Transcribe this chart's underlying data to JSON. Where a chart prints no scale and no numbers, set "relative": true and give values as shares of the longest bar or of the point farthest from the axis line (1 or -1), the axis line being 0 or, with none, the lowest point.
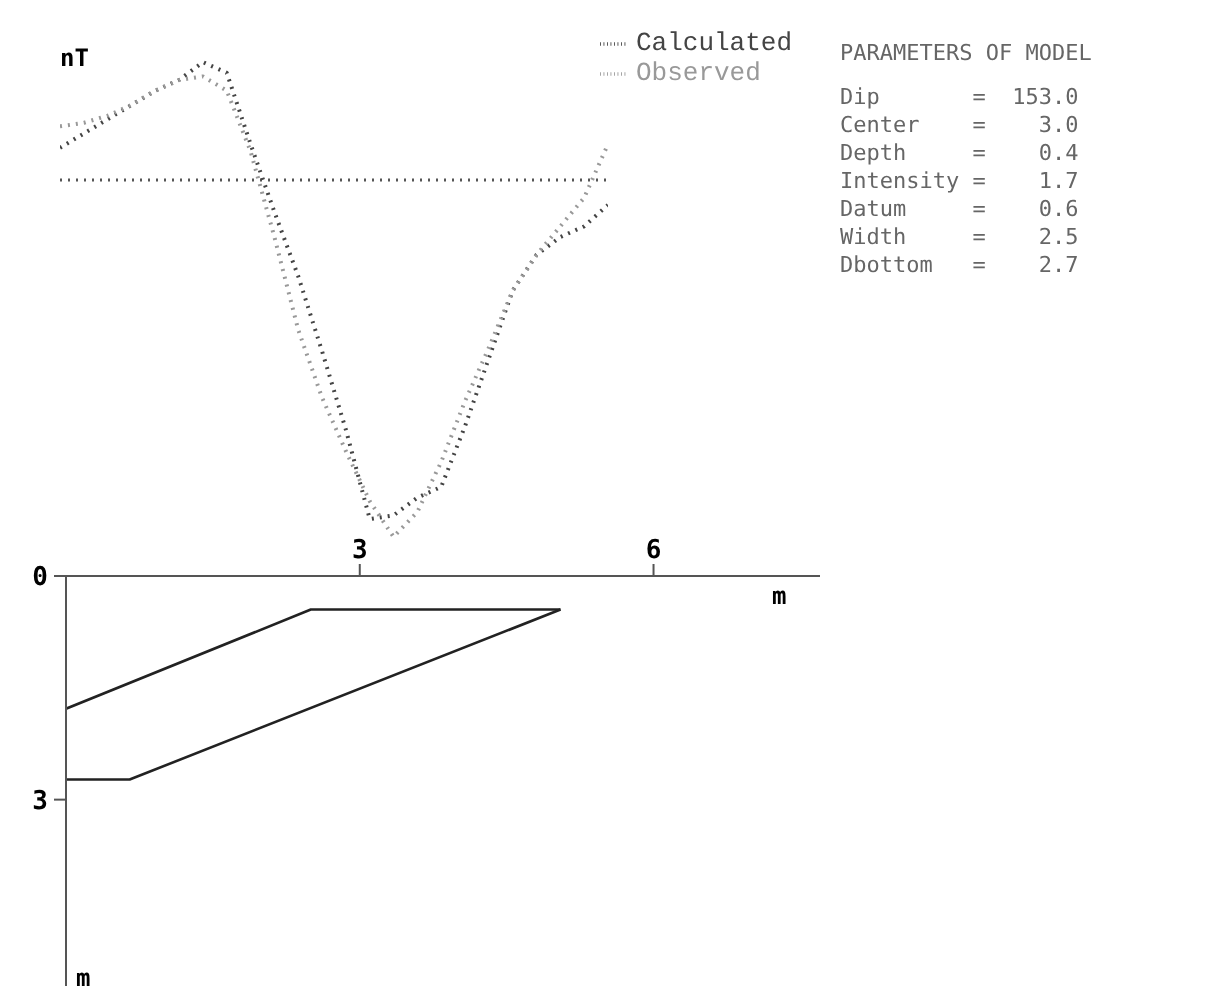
{
  "chart_data": [
    {
      "type": "line",
      "relative": true,
      "ylabel": "nT",
      "legend": "top right",
      "line_style": "dotted",
      "ref_lines": [
        {
          "axis": "y",
          "value": 0,
          "line_style": "dotted",
          "color": "#555555"
        }
      ],
      "categories": [
        null,
        null,
        null,
        null,
        null,
        null,
        null,
        null,
        null,
        null,
        null,
        null,
        null,
        null,
        null,
        null,
        null,
        null,
        null,
        null,
        null,
        null,
        null,
        null
      ],
      "series": [
        {
          "name": "Calculated",
          "color": "#444444",
          "values": [
            0.09,
            0.13,
            0.17,
            0.21,
            0.25,
            0.28,
            0.33,
            0.3,
            0.1,
            -0.09,
            -0.27,
            -0.48,
            -0.7,
            -0.95,
            -0.94,
            -0.89,
            -0.86,
            -0.69,
            -0.5,
            -0.31,
            -0.21,
            -0.16,
            -0.13,
            -0.07
          ]
        },
        {
          "name": "Observed",
          "color": "#999999",
          "values": [
            0.15,
            0.16,
            0.18,
            0.21,
            0.25,
            0.28,
            0.29,
            0.25,
            0.08,
            -0.16,
            -0.42,
            -0.61,
            -0.76,
            -0.9,
            -1,
            -0.93,
            -0.79,
            -0.62,
            -0.47,
            -0.31,
            -0.21,
            -0.13,
            -0.05,
            0.1
          ]
        }
      ],
      "annotations": [
        "PARAMETERS OF MODEL",
        "Dip       =  153.0",
        "Center    =    3.0",
        "Depth     =    0.4",
        "Intensity =    1.7",
        "Datum     =    0.6",
        "Width     =    2.5",
        "Dbottom   =    2.7"
      ]
    },
    {
      "type": "line",
      "xlabel": "m",
      "ylabel": "m",
      "xlim": [
        0,
        7.7
      ],
      "xticks": [
        3,
        6
      ],
      "ylim": [
        5.5,
        0
      ],
      "yticks": [
        0,
        3
      ],
      "line_style": "solid",
      "series": [
        {
          "color": "#222222",
          "x": [
            0,
            2.5,
            5.05
          ],
          "values": [
            1.78,
            0.45,
            0.45
          ]
        },
        {
          "color": "#222222",
          "x": [
            0,
            0.65,
            5.05
          ],
          "values": [
            2.73,
            2.73,
            0.45
          ]
        }
      ]
    }
  ]
}
